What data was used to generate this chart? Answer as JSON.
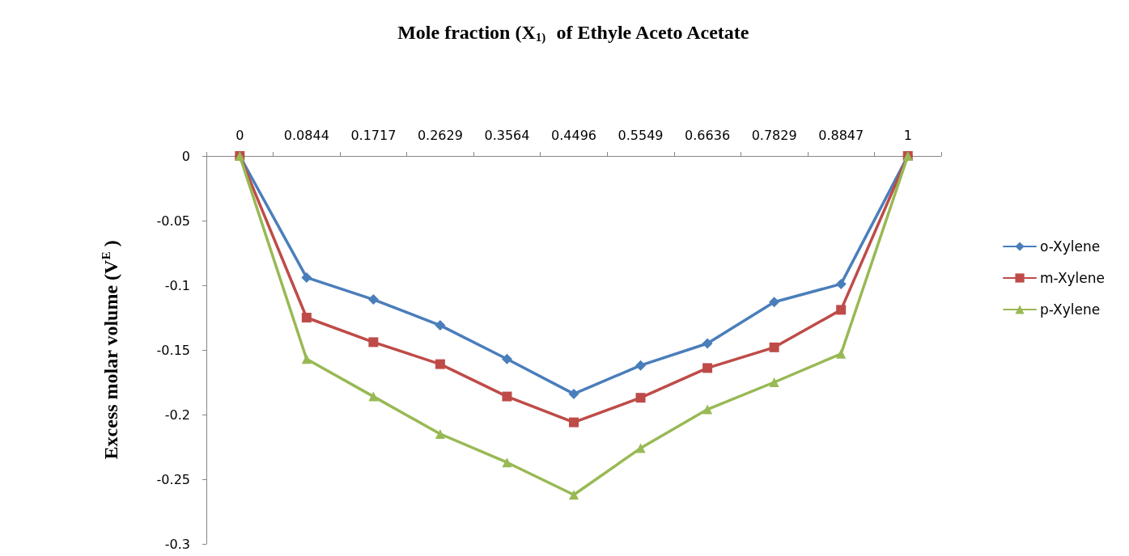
{
  "chart_data": {
    "type": "line",
    "xlabel": "Mole fraction (X$_{1)}$  of Ethyle Aceto Acetate",
    "ylabel": "Excess molar volume (V$^{E}$ )",
    "categories": [
      "0",
      "0.0844",
      "0.1717",
      "0.2629",
      "0.3564",
      "0.4496",
      "0.5549",
      "0.6636",
      "0.7829",
      "0.8847",
      "1"
    ],
    "series": [
      {
        "name": "o-Xylene",
        "color": "#4a7ebb",
        "marker": "diamond",
        "values": [
          0,
          -0.094,
          -0.111,
          -0.131,
          -0.157,
          -0.184,
          -0.162,
          -0.145,
          -0.113,
          -0.099,
          0
        ]
      },
      {
        "name": "m-Xylene",
        "color": "#be4b48",
        "marker": "square",
        "values": [
          0,
          -0.125,
          -0.144,
          -0.161,
          -0.186,
          -0.206,
          -0.187,
          -0.164,
          -0.148,
          -0.119,
          0
        ]
      },
      {
        "name": "p-Xylene",
        "color": "#98b954",
        "marker": "triangle",
        "values": [
          0,
          -0.157,
          -0.186,
          -0.215,
          -0.237,
          -0.262,
          -0.226,
          -0.196,
          -0.175,
          -0.153,
          0
        ]
      }
    ],
    "ylim": [
      -0.3,
      0
    ],
    "yticks": [
      -0.3,
      -0.25,
      -0.2,
      -0.15,
      -0.1,
      -0.05,
      0
    ],
    "grid": false,
    "legend": "right",
    "line_style": "solid"
  }
}
